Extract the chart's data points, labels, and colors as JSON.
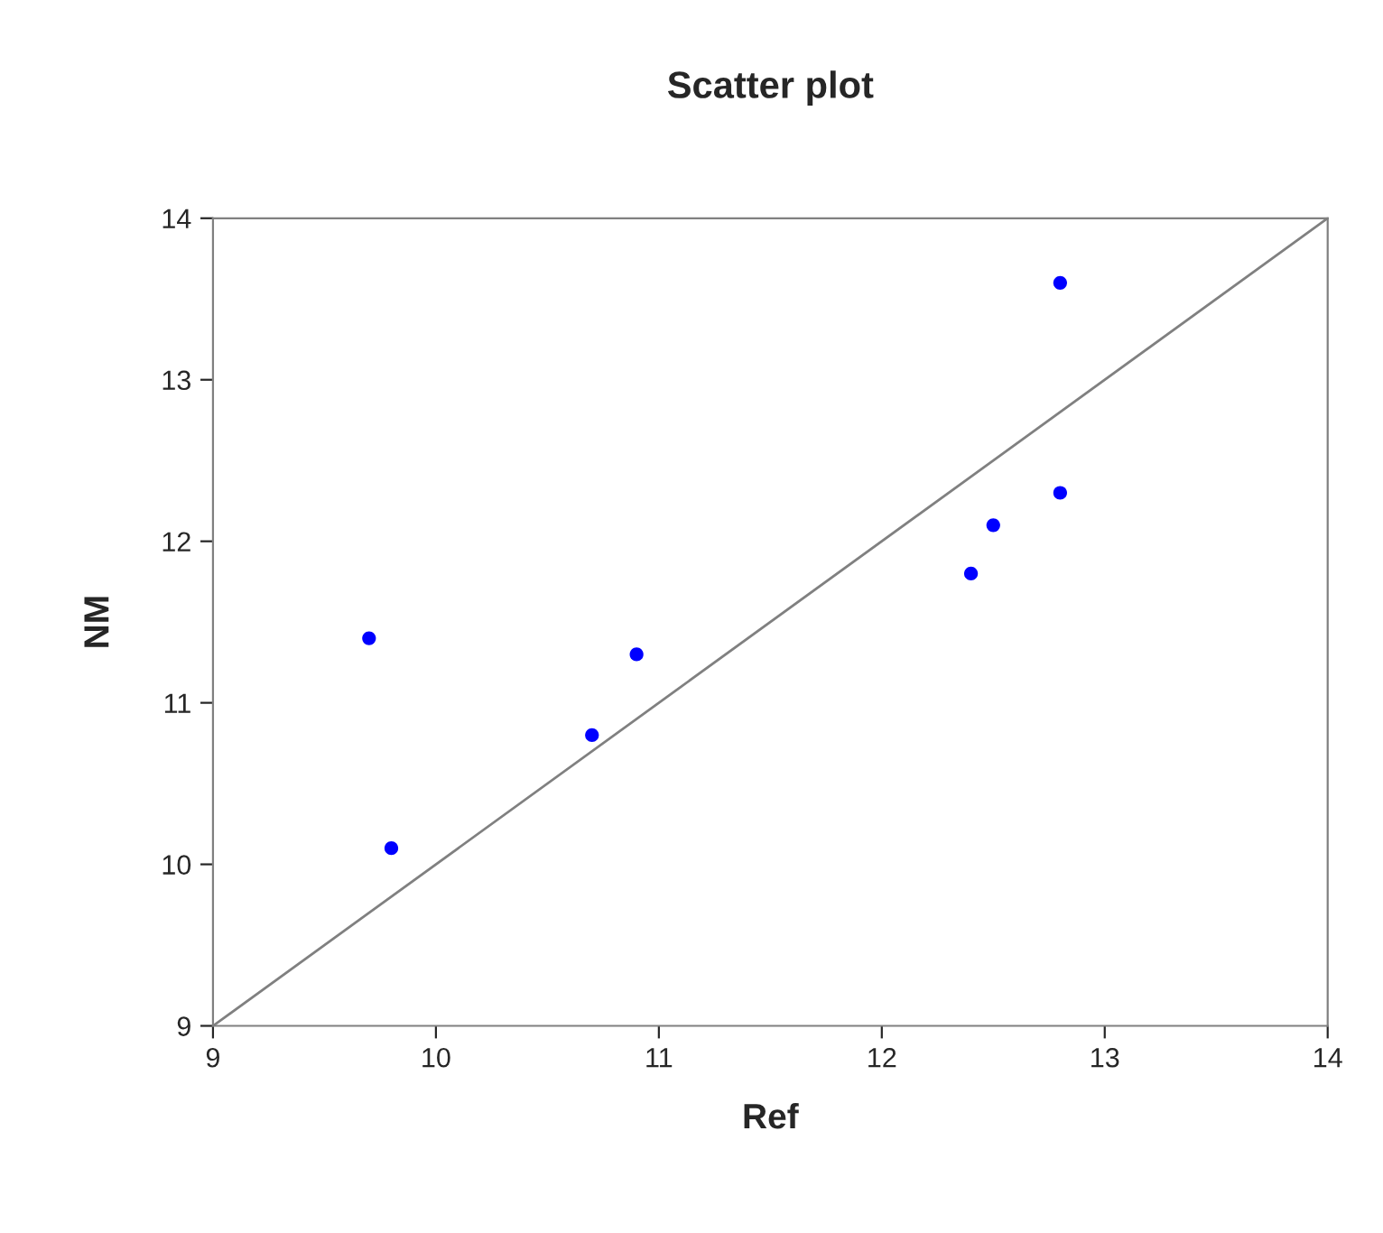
{
  "chart_data": {
    "type": "scatter",
    "title": "Scatter plot",
    "xlabel": "Ref",
    "ylabel": "NM",
    "xlim": [
      9,
      14
    ],
    "ylim": [
      9,
      14
    ],
    "xticks": [
      9,
      10,
      11,
      12,
      13,
      14
    ],
    "yticks": [
      9,
      10,
      11,
      12,
      13,
      14
    ],
    "grid": false,
    "legend": false,
    "series": [
      {
        "color": "#0000ff",
        "marker": "circle",
        "x": [
          9.7,
          9.8,
          10.7,
          10.9,
          12.4,
          12.5,
          12.8,
          12.8
        ],
        "values": [
          11.4,
          10.1,
          10.8,
          11.3,
          11.8,
          12.1,
          13.6,
          12.3
        ]
      },
      {
        "type": "line",
        "color": "#808080",
        "marker": "none",
        "line_style": "solid",
        "x": [
          9,
          14
        ],
        "values": [
          9,
          14
        ]
      }
    ]
  }
}
